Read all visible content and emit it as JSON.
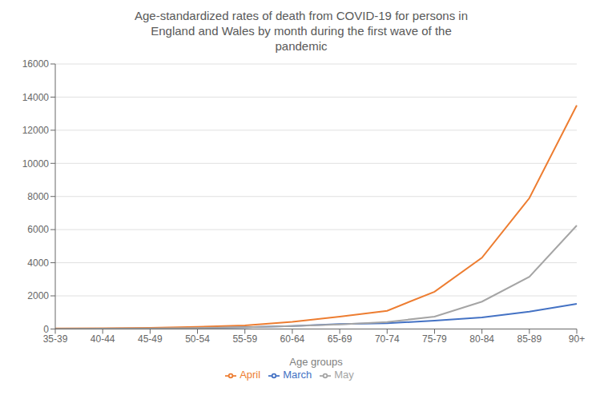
{
  "chart_data": {
    "type": "line",
    "title": "Age-standardized rates of death from COVID-19 for persons in\nEngland and Wales by month during the first wave of the\npandemic",
    "xlabel": "Age groups",
    "categories": [
      "35-39",
      "40-44",
      "45-49",
      "50-54",
      "55-59",
      "60-64",
      "65-69",
      "70-74",
      "75-79",
      "80-84",
      "85-89",
      "90+"
    ],
    "series": [
      {
        "name": "March",
        "color": "#4472c4",
        "values": [
          20,
          25,
          35,
          60,
          100,
          180,
          300,
          350,
          500,
          700,
          1050,
          1520
        ]
      },
      {
        "name": "April",
        "color": "#ed7d31",
        "values": [
          30,
          45,
          75,
          130,
          220,
          430,
          750,
          1100,
          2250,
          4300,
          7900,
          13500
        ]
      },
      {
        "name": "May",
        "color": "#a5a5a5",
        "values": [
          15,
          20,
          35,
          60,
          100,
          180,
          280,
          420,
          750,
          1650,
          3150,
          6250
        ]
      }
    ],
    "ylim": [
      0,
      16000
    ],
    "yticks": [
      0,
      2000,
      4000,
      6000,
      8000,
      10000,
      12000,
      14000,
      16000
    ],
    "grid": true,
    "legend": "bottom"
  }
}
